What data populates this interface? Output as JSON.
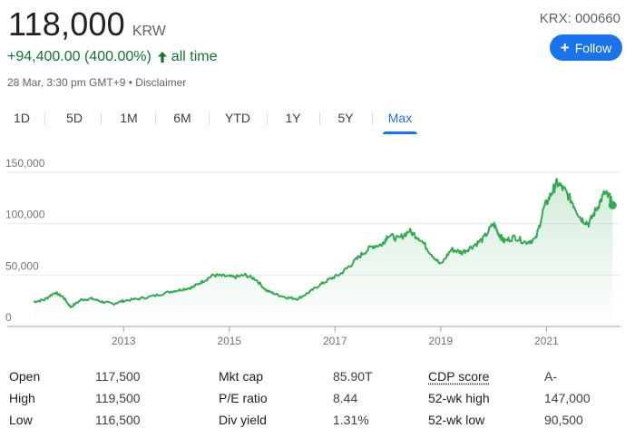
{
  "quote": {
    "price": "118,000",
    "currency": "KRW",
    "ticker": "KRX: 000660",
    "change": "+94,400.00 (400.00%)",
    "change_period": "all time",
    "timestamp": "28 Mar, 3:30 pm GMT+9",
    "separator": "•",
    "disclaimer": "Disclaimer",
    "follow_label": "Follow",
    "accent_color": "#1a73e8",
    "positive_color": "#137333"
  },
  "tabs": [
    {
      "label": "1D"
    },
    {
      "label": "5D"
    },
    {
      "label": "1M"
    },
    {
      "label": "6M"
    },
    {
      "label": "YTD"
    },
    {
      "label": "1Y"
    },
    {
      "label": "5Y"
    },
    {
      "label": "Max",
      "active": true
    }
  ],
  "chart_data": {
    "type": "area",
    "title": "",
    "xlabel": "",
    "ylabel": "",
    "y_ticks": [
      "150,000",
      "100,000",
      "50,000",
      "0"
    ],
    "x_ticks": [
      "2013",
      "2015",
      "2017",
      "2019",
      "2021"
    ],
    "ylim": [
      0,
      150000
    ],
    "grid": true,
    "line_color": "#34a853",
    "series": [
      {
        "values": [
          [
            2011.3,
            24000
          ],
          [
            2011.5,
            26000
          ],
          [
            2011.7,
            33000
          ],
          [
            2011.85,
            29000
          ],
          [
            2012.0,
            19000
          ],
          [
            2012.2,
            26000
          ],
          [
            2012.4,
            27000
          ],
          [
            2012.6,
            24000
          ],
          [
            2012.8,
            22000
          ],
          [
            2013.0,
            25000
          ],
          [
            2013.3,
            27000
          ],
          [
            2013.6,
            30000
          ],
          [
            2013.9,
            34000
          ],
          [
            2014.1,
            36000
          ],
          [
            2014.3,
            38000
          ],
          [
            2014.5,
            44000
          ],
          [
            2014.7,
            50000
          ],
          [
            2014.9,
            49000
          ],
          [
            2015.1,
            48000
          ],
          [
            2015.3,
            50000
          ],
          [
            2015.5,
            46000
          ],
          [
            2015.7,
            35000
          ],
          [
            2015.9,
            31000
          ],
          [
            2016.1,
            28000
          ],
          [
            2016.3,
            27000
          ],
          [
            2016.5,
            33000
          ],
          [
            2016.7,
            40000
          ],
          [
            2016.9,
            46000
          ],
          [
            2017.1,
            51000
          ],
          [
            2017.3,
            60000
          ],
          [
            2017.5,
            70000
          ],
          [
            2017.7,
            78000
          ],
          [
            2017.9,
            80000
          ],
          [
            2018.0,
            89000
          ],
          [
            2018.2,
            85000
          ],
          [
            2018.4,
            93000
          ],
          [
            2018.6,
            86000
          ],
          [
            2018.8,
            72000
          ],
          [
            2019.0,
            60000
          ],
          [
            2019.2,
            75000
          ],
          [
            2019.4,
            72000
          ],
          [
            2019.6,
            78000
          ],
          [
            2019.8,
            85000
          ],
          [
            2020.0,
            100000
          ],
          [
            2020.1,
            90000
          ],
          [
            2020.2,
            83000
          ],
          [
            2020.4,
            87000
          ],
          [
            2020.6,
            82000
          ],
          [
            2020.8,
            85000
          ],
          [
            2020.95,
            115000
          ],
          [
            2021.1,
            130000
          ],
          [
            2021.2,
            140000
          ],
          [
            2021.35,
            132000
          ],
          [
            2021.5,
            120000
          ],
          [
            2021.65,
            105000
          ],
          [
            2021.8,
            100000
          ],
          [
            2021.95,
            115000
          ],
          [
            2022.1,
            130000
          ],
          [
            2022.2,
            125000
          ],
          [
            2022.25,
            118000
          ]
        ]
      }
    ]
  },
  "stats": {
    "columns": [
      [
        {
          "label": "Open",
          "value": "117,500"
        },
        {
          "label": "High",
          "value": "119,500"
        },
        {
          "label": "Low",
          "value": "116,500"
        }
      ],
      [
        {
          "label": "Mkt cap",
          "value": "85.90T"
        },
        {
          "label": "P/E ratio",
          "value": "8.44"
        },
        {
          "label": "Div yield",
          "value": "1.31%"
        }
      ],
      [
        {
          "label": "CDP score",
          "value": "A-",
          "underline": true
        },
        {
          "label": "52-wk high",
          "value": "147,000"
        },
        {
          "label": "52-wk low",
          "value": "90,500"
        }
      ]
    ]
  }
}
